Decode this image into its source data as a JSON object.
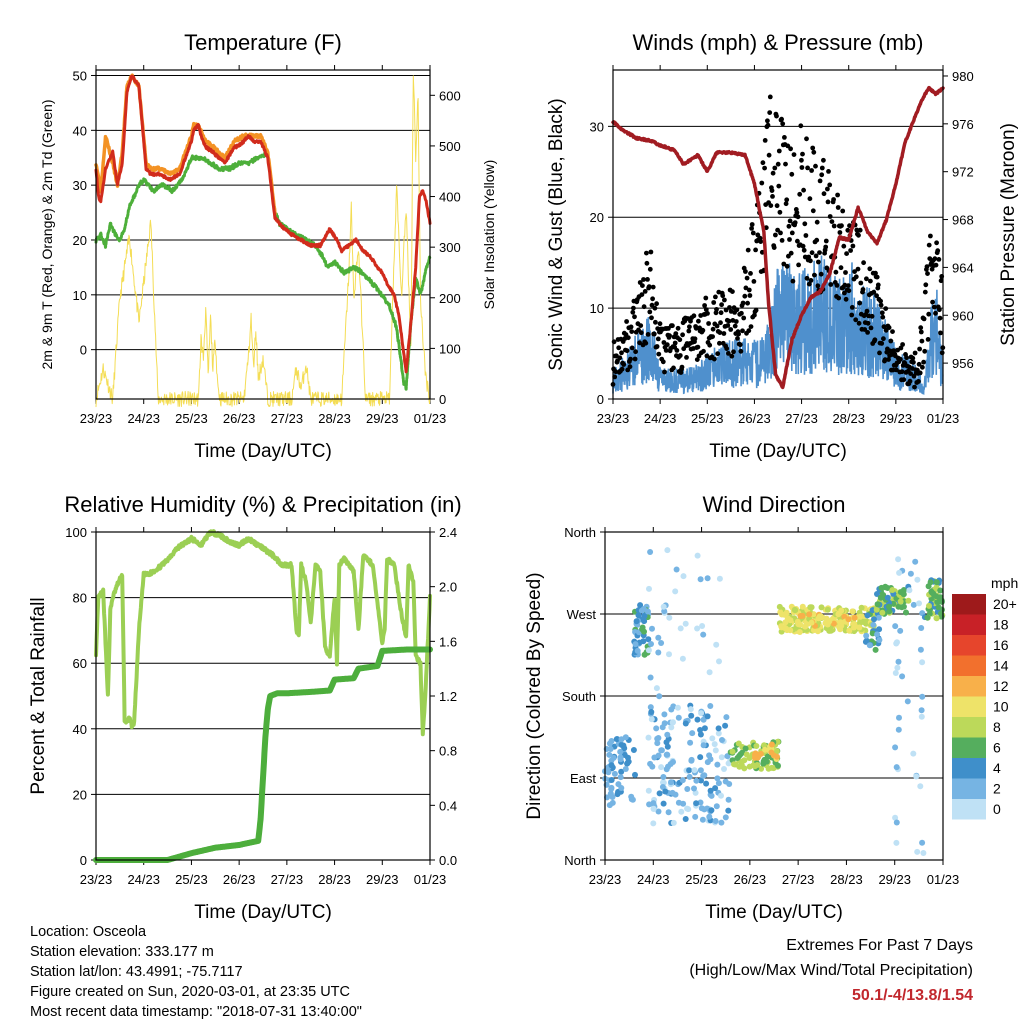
{
  "chart_data": [
    {
      "type": "line",
      "title": "Temperature (F)",
      "xlabel": "Time (Day/UTC)",
      "ylabel": "2m & 9m T (Red, Orange) & 2m Td (Green)",
      "ylabel_right": "Solar Insolation (Yellow)",
      "x_ticks": [
        "23/23",
        "24/23",
        "25/23",
        "26/23",
        "27/23",
        "28/23",
        "29/23",
        "01/23"
      ],
      "y_ticks": [
        "0",
        "10",
        "20",
        "30",
        "40",
        "50"
      ],
      "y_right_ticks": [
        "0",
        "100",
        "200",
        "300",
        "400",
        "500",
        "600"
      ],
      "ylim": [
        -9,
        51
      ],
      "ylim_right": [
        0,
        650
      ],
      "grid": true,
      "colors": {
        "temp2m": "#d12b1c",
        "temp9m": "#f39224",
        "dewpoint": "#4daf3a",
        "solar": "#f4dd55"
      },
      "series": [
        {
          "name": "2m T",
          "t": [
            0,
            0.05,
            0.1,
            0.2,
            0.35,
            0.45,
            0.55,
            0.65,
            0.75,
            0.9,
            1.05,
            1.15,
            1.35,
            1.55,
            1.75,
            2.0,
            2.05,
            2.15,
            2.2,
            2.3,
            2.45,
            2.7,
            2.9,
            2.95,
            3.1,
            3.2,
            3.3,
            3.45,
            3.6,
            3.75,
            3.85,
            3.95,
            4.1,
            4.3,
            4.5,
            4.7,
            4.9,
            5.05,
            5.15,
            5.3,
            5.45,
            5.6,
            5.75,
            5.9,
            6.0,
            6.1,
            6.25,
            6.35,
            6.5,
            6.6,
            6.7,
            6.78,
            6.85,
            6.92,
            7.0
          ],
          "values": [
            33,
            28,
            27,
            33,
            36,
            30,
            34,
            47,
            50,
            48,
            33,
            32,
            32,
            31,
            32,
            38,
            40,
            41,
            39,
            37,
            36,
            34,
            37,
            37,
            38,
            39,
            38,
            38,
            35,
            24,
            23,
            22,
            21,
            20,
            19,
            19,
            22,
            20,
            18,
            19,
            20,
            18,
            17,
            15,
            14,
            12,
            10,
            6,
            -4,
            5,
            15,
            28,
            29,
            27,
            23
          ]
        },
        {
          "name": "9m T",
          "t": [
            0,
            0.1,
            0.2,
            0.35,
            0.45,
            0.55,
            0.65,
            0.75,
            0.9,
            1.05,
            1.15,
            1.35,
            1.55,
            1.75,
            2.0,
            2.05,
            2.15,
            2.2,
            2.3,
            2.45,
            2.7,
            2.9,
            3.1,
            3.3,
            3.45,
            3.6,
            3.75
          ],
          "values": [
            34,
            29,
            39,
            34,
            30,
            36,
            48,
            50,
            48,
            34,
            33,
            33,
            32,
            33,
            39,
            41,
            41,
            40,
            38,
            37,
            35,
            38,
            39,
            39,
            39,
            36,
            25
          ]
        },
        {
          "name": "2m Td",
          "t": [
            0,
            0.1,
            0.2,
            0.3,
            0.4,
            0.5,
            0.6,
            0.7,
            0.8,
            0.9,
            1.0,
            1.1,
            1.2,
            1.4,
            1.6,
            1.8,
            2.0,
            2.2,
            2.4,
            2.6,
            2.8,
            3.0,
            3.2,
            3.4,
            3.6,
            3.75,
            3.85,
            4.0,
            4.2,
            4.4,
            4.6,
            4.75,
            4.85,
            5.0,
            5.2,
            5.4,
            5.6,
            5.8,
            6.0,
            6.15,
            6.3,
            6.45,
            6.5,
            6.6,
            6.7,
            6.8,
            6.9,
            7.0
          ],
          "values": [
            20,
            21,
            19,
            23,
            21,
            20,
            22,
            26,
            28,
            30,
            31,
            30,
            29,
            30,
            29,
            31,
            35,
            35,
            34,
            33,
            33,
            34,
            34,
            35,
            36,
            25,
            23,
            22,
            21,
            20,
            19,
            17,
            15,
            16,
            14,
            15,
            14,
            12,
            10,
            8,
            4,
            -6,
            -7,
            5,
            13,
            10,
            14,
            17
          ]
        },
        {
          "name": "Solar Insolation",
          "t": [
            0,
            0.15,
            0.35,
            0.5,
            0.7,
            0.9,
            1.15,
            1.3,
            2.15,
            2.2,
            2.25,
            2.3,
            2.35,
            2.4,
            2.45,
            2.5,
            2.55,
            2.6,
            3.1,
            3.2,
            3.25,
            3.3,
            3.35,
            3.4,
            3.5,
            3.6,
            4.1,
            4.2,
            4.3,
            4.4,
            4.5,
            5.15,
            5.3,
            5.35,
            5.4,
            5.5,
            5.6,
            5.65,
            6.15,
            6.3,
            6.4,
            6.5,
            6.6,
            6.65,
            6.7,
            6.75,
            6.8,
            6.9,
            7.0
          ],
          "values": [
            0,
            60,
            0,
            200,
            320,
            150,
            350,
            0,
            0,
            120,
            80,
            180,
            40,
            160,
            60,
            120,
            30,
            0,
            0,
            90,
            160,
            60,
            140,
            40,
            80,
            0,
            0,
            60,
            20,
            70,
            0,
            0,
            250,
            380,
            200,
            300,
            100,
            0,
            0,
            420,
            200,
            380,
            100,
            650,
            480,
            600,
            200,
            50,
            0
          ]
        }
      ]
    },
    {
      "type": "scatter",
      "title": "Winds (mph) & Pressure (mb)",
      "xlabel": "Time (Day/UTC)",
      "ylabel": "Sonic Wind & Gust (Blue, Black)",
      "ylabel_right": "Station Pressure (Maroon)",
      "x_ticks": [
        "23/23",
        "24/23",
        "25/23",
        "26/23",
        "27/23",
        "28/23",
        "29/23",
        "01/23"
      ],
      "y_ticks": [
        "0",
        "10",
        "20",
        "30"
      ],
      "y_right_ticks": [
        "956",
        "960",
        "964",
        "968",
        "972",
        "976",
        "980"
      ],
      "ylim": [
        0,
        36.2
      ],
      "ylim_right": [
        953.0,
        980.5
      ],
      "grid": true,
      "colors": {
        "wind": "#4f90cd",
        "gust": "#000000",
        "pressure": "#a11c22"
      },
      "series": [
        {
          "name": "Wind",
          "t": [
            0,
            0.3,
            0.6,
            0.8,
            1.0,
            1.2,
            1.6,
            2.0,
            2.4,
            2.8,
            3.1,
            3.3,
            3.5,
            3.7,
            3.9,
            4.2,
            4.5,
            4.7,
            4.9,
            5.1,
            5.3,
            5.6,
            5.9,
            6.1,
            6.3,
            6.45,
            6.6,
            6.75,
            6.85,
            7.0
          ],
          "values": [
            2,
            3,
            5,
            6,
            2,
            2,
            2,
            3,
            4,
            4,
            4,
            5,
            9,
            9,
            8,
            9,
            10,
            8,
            8,
            9,
            8,
            7,
            4,
            3,
            3,
            2,
            1,
            6,
            8,
            3
          ]
        },
        {
          "name": "Gust",
          "t": [
            0,
            0.3,
            0.6,
            0.75,
            0.9,
            1.05,
            1.3,
            1.6,
            2.0,
            2.4,
            2.7,
            2.9,
            3.05,
            3.2,
            3.4,
            3.6,
            3.8,
            4.0,
            4.2,
            4.5,
            4.7,
            4.9,
            5.1,
            5.3,
            5.5,
            5.7,
            5.9,
            6.1,
            6.3,
            6.5,
            6.7,
            6.8,
            6.9,
            7.0
          ],
          "values": [
            4,
            6,
            9,
            12,
            10,
            5,
            6,
            6,
            8,
            8,
            9,
            12,
            17,
            22,
            26,
            22,
            21,
            22,
            20,
            19,
            17,
            15,
            14,
            13,
            11,
            8,
            5,
            4,
            3,
            4,
            12,
            16,
            14,
            8
          ]
        },
        {
          "name": "Station Pressure",
          "t": [
            0,
            0.2,
            0.5,
            0.8,
            1.0,
            1.3,
            1.5,
            1.8,
            2.0,
            2.2,
            2.5,
            2.8,
            3.0,
            3.2,
            3.3,
            3.45,
            3.6,
            3.8,
            4.0,
            4.2,
            4.4,
            4.6,
            4.8,
            5.0,
            5.2,
            5.4,
            5.6,
            5.8,
            6.0,
            6.2,
            6.4,
            6.55,
            6.7,
            6.85,
            7.0
          ],
          "values": [
            976.2,
            975.5,
            974.8,
            974.6,
            974.2,
            973.8,
            972.6,
            973.4,
            972.0,
            973.6,
            973.6,
            973.4,
            971.0,
            967.0,
            961.0,
            955.0,
            954.0,
            958.0,
            960.0,
            961.5,
            962.0,
            963.5,
            966.5,
            966.3,
            969.0,
            967.0,
            966.0,
            968.0,
            971.0,
            974.5,
            976.5,
            978.0,
            979.0,
            978.5,
            979.0
          ]
        }
      ]
    },
    {
      "type": "line",
      "title": "Relative Humidity (%) & Precipitation (in)",
      "xlabel": "Time (Day/UTC)",
      "ylabel": "Percent & Total Rainfall",
      "x_ticks": [
        "23/23",
        "24/23",
        "25/23",
        "26/23",
        "27/23",
        "28/23",
        "29/23",
        "01/23"
      ],
      "y_ticks": [
        "0",
        "20",
        "40",
        "60",
        "80",
        "100"
      ],
      "y_right_ticks": [
        "0.0",
        "0.4",
        "0.8",
        "1.2",
        "1.6",
        "2.0",
        "2.4"
      ],
      "ylim": [
        0,
        100
      ],
      "ylim_right": [
        0,
        2.4
      ],
      "grid": true,
      "colors": {
        "rh": "#9bcf54",
        "precip": "#4dae3c"
      },
      "series": [
        {
          "name": "RH",
          "t": [
            0,
            0.05,
            0.15,
            0.25,
            0.3,
            0.35,
            0.45,
            0.55,
            0.6,
            0.7,
            0.75,
            0.8,
            0.9,
            1.0,
            1.1,
            1.2,
            1.4,
            1.7,
            2.0,
            2.2,
            2.4,
            2.6,
            2.8,
            3.0,
            3.2,
            3.5,
            3.7,
            3.9,
            4.1,
            4.2,
            4.25,
            4.3,
            4.4,
            4.5,
            4.6,
            4.7,
            4.8,
            4.9,
            5.0,
            5.05,
            5.1,
            5.2,
            5.4,
            5.5,
            5.6,
            5.8,
            6.0,
            6.05,
            6.1,
            6.25,
            6.4,
            6.5,
            6.55,
            6.65,
            6.7,
            6.8,
            6.85,
            6.9,
            7.0
          ],
          "values": [
            63,
            80,
            82,
            50,
            76,
            80,
            84,
            87,
            42,
            43,
            41,
            42,
            70,
            87,
            87,
            88,
            90,
            95,
            98,
            96,
            100,
            99,
            97,
            96,
            98,
            95,
            93,
            90,
            90,
            70,
            68,
            90,
            85,
            72,
            90,
            88,
            65,
            62,
            80,
            60,
            90,
            92,
            88,
            70,
            93,
            90,
            66,
            70,
            92,
            90,
            75,
            68,
            90,
            85,
            62,
            60,
            38,
            50,
            80
          ]
        },
        {
          "name": "Total Precipitation",
          "t": [
            0,
            1.5,
            2.0,
            2.5,
            3.0,
            3.4,
            3.45,
            3.5,
            3.55,
            3.6,
            3.65,
            3.8,
            4.0,
            4.5,
            4.9,
            5.0,
            5.4,
            5.5,
            5.9,
            6.0,
            6.5,
            7.0
          ],
          "values": [
            0,
            0,
            0.05,
            0.09,
            0.11,
            0.14,
            0.3,
            0.6,
            0.9,
            1.1,
            1.2,
            1.22,
            1.22,
            1.23,
            1.24,
            1.32,
            1.33,
            1.4,
            1.42,
            1.53,
            1.54,
            1.54
          ]
        }
      ]
    },
    {
      "type": "scatter",
      "title": "Wind Direction",
      "xlabel": "Time (Day/UTC)",
      "ylabel": "Direction (Colored By Speed)",
      "x_ticks": [
        "23/23",
        "24/23",
        "25/23",
        "26/23",
        "27/23",
        "28/23",
        "29/23",
        "01/23"
      ],
      "y_ticks": [
        "North",
        "East",
        "South",
        "West",
        "North"
      ],
      "ylim": [
        0,
        360
      ],
      "grid": true,
      "legend_title": "mph",
      "legend_labels": [
        "20+",
        "18",
        "16",
        "14",
        "12",
        "10",
        "8",
        "6",
        "4",
        "2",
        "0"
      ],
      "legend_colors": [
        "#9e1a1b",
        "#c82127",
        "#e6452c",
        "#f2702d",
        "#f8b04a",
        "#eee369",
        "#bcd95a",
        "#55ae5e",
        "#3f8fca",
        "#76b4e3",
        "#bfe1f5"
      ],
      "clusters": [
        {
          "t0": 0.0,
          "t1": 0.7,
          "d0": 60,
          "d1": 135,
          "speed": 3,
          "n": 60
        },
        {
          "t0": 0.6,
          "t1": 0.9,
          "d0": 225,
          "d1": 280,
          "speed": 4,
          "n": 45
        },
        {
          "t0": 0.9,
          "t1": 2.6,
          "d0": 40,
          "d1": 170,
          "speed": 2,
          "n": 170
        },
        {
          "t0": 0.8,
          "t1": 2.4,
          "d0": 170,
          "d1": 345,
          "speed": 1,
          "n": 35
        },
        {
          "t0": 2.6,
          "t1": 3.6,
          "d0": 100,
          "d1": 130,
          "speed": 7,
          "n": 70
        },
        {
          "t0": 3.1,
          "t1": 3.6,
          "d0": 110,
          "d1": 128,
          "speed": 11,
          "n": 15
        },
        {
          "t0": 3.6,
          "t1": 5.6,
          "d0": 250,
          "d1": 278,
          "speed": 9,
          "n": 180
        },
        {
          "t0": 4.0,
          "t1": 5.2,
          "d0": 255,
          "d1": 270,
          "speed": 11,
          "n": 30
        },
        {
          "t0": 5.4,
          "t1": 5.7,
          "d0": 230,
          "d1": 275,
          "speed": 4,
          "n": 25
        },
        {
          "t0": 5.6,
          "t1": 6.3,
          "d0": 270,
          "d1": 300,
          "speed": 6,
          "n": 60
        },
        {
          "t0": 6.0,
          "t1": 6.6,
          "d0": 0,
          "d1": 345,
          "speed": 1,
          "n": 40
        },
        {
          "t0": 6.6,
          "t1": 7.0,
          "d0": 265,
          "d1": 310,
          "speed": 6,
          "n": 50
        }
      ]
    }
  ],
  "info": {
    "location": "Location: Osceola",
    "elevation": "Station elevation: 333.177 m",
    "latlon": "Station lat/lon: 43.4991; -75.7117",
    "created": "Figure created on Sun, 2020-03-01, at 23:35 UTC",
    "timestamp": "Most recent data timestamp: \"2018-07-31 13:40:00\""
  },
  "extremes": {
    "title": "Extremes For Past 7 Days",
    "subtitle": "(High/Low/Max Wind/Total Precipitation)",
    "values": "50.1/-4/13.8/1.54"
  }
}
